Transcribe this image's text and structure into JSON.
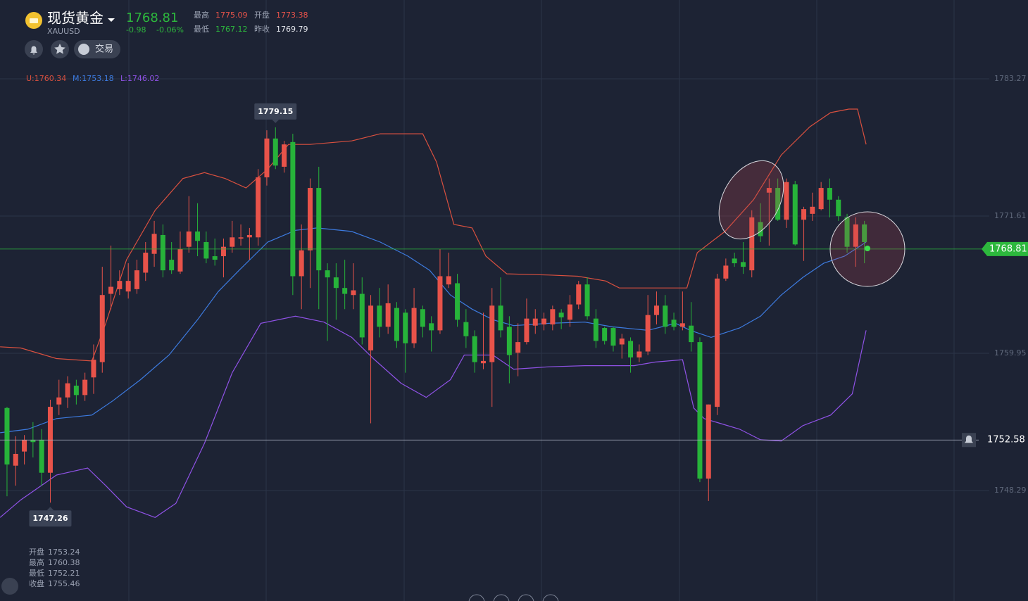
{
  "header": {
    "title": "现货黄金",
    "symbol": "XAUUSD",
    "price": "1768.81",
    "change": "-0.98",
    "change_pct": "-0.06%",
    "stats": [
      {
        "label": "最高",
        "value": "1775.09",
        "color": "#e8534a"
      },
      {
        "label": "开盘",
        "value": "1773.38",
        "color": "#e8534a"
      },
      {
        "label": "最低",
        "value": "1767.12",
        "color": "#2db83d"
      },
      {
        "label": "昨收",
        "value": "1769.79",
        "color": "#e6e8ee"
      }
    ],
    "trade_button": "交易"
  },
  "info_panel": {
    "labels": [
      "开盘",
      "最高",
      "最低",
      "收盘"
    ],
    "values": [
      "1753.24",
      "1760.38",
      "1752.21",
      "1755.46"
    ]
  },
  "chart_data": {
    "type": "candlestick",
    "up_color": "#e8534a",
    "down_color": "#27b33a",
    "xlim": [
      -0.81,
      117.89
    ],
    "ylim": [
      1738.9,
      1789.97
    ],
    "yticks": [
      1783.27,
      1771.61,
      1759.95,
      1748.29
    ],
    "grid": true,
    "current_price": 1768.81,
    "alert_price": 1752.58,
    "open": [
      1755.3,
      1750.4,
      1751.6,
      1752.6,
      1752.6,
      1749.8,
      1755.6,
      1756.2,
      1757.2,
      1756.4,
      1757.9,
      1759.2,
      1765.0,
      1765.4,
      1765.2,
      1765.4,
      1766.8,
      1768.4,
      1770.0,
      1767.9,
      1766.9,
      1769.0,
      1770.3,
      1769.4,
      1768.2,
      1768.2,
      1769.0,
      1769.7,
      1769.8,
      1769.8,
      1774.9,
      1778.2,
      1775.8,
      1777.9,
      1766.5,
      1768.7,
      1774.0,
      1767.0,
      1766.4,
      1765.5,
      1764.9,
      1765.0,
      1760.2,
      1764.0,
      1762.2,
      1763.8,
      1763.4,
      1760.8,
      1763.7,
      1762.5,
      1761.9,
      1765.8,
      1765.9,
      1762.6,
      1761.4,
      1759.1,
      1759.2,
      1764.0,
      1762.2,
      1760.0,
      1760.9,
      1762.3,
      1762.4,
      1762.4,
      1763.4,
      1762.8,
      1764.1,
      1765.8,
      1762.9,
      1762.1,
      1762.1,
      1760.7,
      1761.0,
      1759.6,
      1760.1,
      1763.2,
      1764.0,
      1762.8,
      1762.2,
      1762.3,
      1760.9,
      1749.3,
      1755.4,
      1766.3,
      1768.0,
      1767.7,
      1767.0,
      1771.1,
      1773.6,
      1774.0,
      1771.3,
      1774.3,
      1771.3,
      1771.8,
      1772.2,
      1774.0,
      1773.0,
      1771.5,
      1769.0,
      1770.9
    ],
    "high": [
      1755.4,
      1752.9,
      1753.0,
      1754.1,
      1753.5,
      1756.0,
      1757.7,
      1758.0,
      1757.7,
      1758.3,
      1760.7,
      1767.3,
      1769.1,
      1767.0,
      1767.6,
      1767.9,
      1769.4,
      1771.2,
      1770.9,
      1769.4,
      1770.3,
      1773.3,
      1772.7,
      1770.3,
      1769.7,
      1769.7,
      1771.2,
      1770.9,
      1770.6,
      1775.6,
      1778.9,
      1779.15,
      1778.0,
      1778.6,
      1770.9,
      1774.8,
      1775.8,
      1767.6,
      1767.6,
      1767.9,
      1767.6,
      1766.4,
      1764.9,
      1765.5,
      1765.8,
      1764.3,
      1763.7,
      1765.5,
      1764.0,
      1763.1,
      1768.8,
      1768.5,
      1766.7,
      1763.7,
      1761.9,
      1763.4,
      1765.5,
      1766.4,
      1763.1,
      1762.5,
      1764.6,
      1763.7,
      1763.4,
      1764.0,
      1763.7,
      1764.9,
      1766.1,
      1766.4,
      1763.7,
      1762.2,
      1762.2,
      1761.6,
      1761.3,
      1760.7,
      1764.9,
      1765.2,
      1764.9,
      1763.4,
      1765.2,
      1764.3,
      1761.3,
      1755.6,
      1766.7,
      1768.0,
      1768.5,
      1769.4,
      1772.1,
      1772.7,
      1774.8,
      1774.8,
      1774.8,
      1774.6,
      1772.4,
      1773.6,
      1774.5,
      1774.8,
      1773.3,
      1771.8,
      1771.5,
      1771.2
    ],
    "low": [
      1747.8,
      1748.7,
      1750.5,
      1751.1,
      1748.7,
      1747.26,
      1754.7,
      1755.3,
      1755.6,
      1755.9,
      1756.5,
      1758.3,
      1763.7,
      1764.9,
      1764.6,
      1765.0,
      1766.1,
      1767.3,
      1766.4,
      1766.7,
      1766.7,
      1768.5,
      1768.2,
      1767.6,
      1767.4,
      1766.4,
      1768.5,
      1769.1,
      1767.9,
      1769.1,
      1774.2,
      1775.6,
      1775.3,
      1764.9,
      1763.7,
      1765.5,
      1763.7,
      1761.0,
      1762.8,
      1763.7,
      1763.7,
      1760.7,
      1754.0,
      1761.3,
      1761.6,
      1760.4,
      1758.3,
      1760.4,
      1761.3,
      1760.1,
      1761.6,
      1765.5,
      1762.2,
      1760.4,
      1758.3,
      1758.6,
      1755.4,
      1761.3,
      1757.4,
      1758.0,
      1760.7,
      1761.6,
      1761.9,
      1761.9,
      1762.0,
      1762.2,
      1763.7,
      1762.8,
      1760.4,
      1760.7,
      1760.1,
      1759.5,
      1758.3,
      1759.2,
      1759.8,
      1762.4,
      1761.6,
      1761.9,
      1761.9,
      1760.1,
      1749.0,
      1747.4,
      1754.7,
      1766.1,
      1767.3,
      1766.7,
      1766.4,
      1769.4,
      1769.1,
      1771.2,
      1770.6,
      1769.1,
      1767.8,
      1771.2,
      1772.1,
      1771.5,
      1771.2,
      1768.5,
      1767.3,
      1767.6
    ],
    "close": [
      1750.5,
      1751.4,
      1752.6,
      1752.4,
      1749.8,
      1755.4,
      1756.2,
      1757.4,
      1756.4,
      1757.7,
      1759.4,
      1764.9,
      1765.6,
      1766.1,
      1766.1,
      1767.0,
      1768.5,
      1770.1,
      1767.0,
      1767.0,
      1768.8,
      1770.3,
      1769.5,
      1768.0,
      1767.9,
      1769.0,
      1769.8,
      1769.8,
      1770.0,
      1774.9,
      1778.2,
      1775.9,
      1777.7,
      1766.5,
      1768.7,
      1774.0,
      1767.0,
      1766.4,
      1765.5,
      1765.0,
      1765.3,
      1761.3,
      1764.0,
      1762.2,
      1764.2,
      1761.0,
      1760.8,
      1763.8,
      1762.2,
      1761.9,
      1766.5,
      1766.5,
      1762.8,
      1761.4,
      1759.2,
      1759.3,
      1764.0,
      1761.9,
      1759.8,
      1760.9,
      1762.9,
      1762.9,
      1762.9,
      1763.7,
      1763.0,
      1764.1,
      1765.8,
      1763.1,
      1761.0,
      1761.0,
      1760.6,
      1761.2,
      1759.6,
      1760.1,
      1763.2,
      1764.0,
      1762.2,
      1762.2,
      1762.5,
      1760.9,
      1749.3,
      1755.6,
      1766.3,
      1767.4,
      1767.6,
      1767.3,
      1771.5,
      1769.9,
      1774.0,
      1771.3,
      1774.5,
      1769.2,
      1772.2,
      1772.4,
      1774.0,
      1773.0,
      1771.6,
      1769.0,
      1770.9,
      1769.4
    ],
    "series": [
      {
        "name": "U:1760.34",
        "color": "#d9503f",
        "x": [
          -0.8,
          1.6,
          5.7,
          9.8,
          11.4,
          13.8,
          17.1,
          20.3,
          22.8,
          25.2,
          27.6,
          30.1,
          32.5,
          35.0,
          39.8,
          43.1,
          48.0,
          49.6,
          51.6,
          53.7,
          55.3,
          57.7,
          62.6,
          65.9,
          69.1,
          70.7,
          76.4,
          78.5,
          79.7,
          82.9,
          86.2,
          89.4,
          92.7,
          95.1,
          97.2,
          98.2,
          99.2
        ],
        "values": [
          1760.5,
          1760.4,
          1759.5,
          1759.3,
          1762.5,
          1767.9,
          1772.1,
          1774.8,
          1775.3,
          1774.8,
          1774.0,
          1775.6,
          1777.7,
          1777.7,
          1778.0,
          1778.6,
          1778.6,
          1776.2,
          1770.9,
          1770.6,
          1768.2,
          1766.7,
          1766.6,
          1766.5,
          1766.1,
          1765.5,
          1765.5,
          1765.5,
          1768.5,
          1770.3,
          1773.0,
          1776.8,
          1779.2,
          1780.4,
          1780.7,
          1780.7,
          1777.7
        ]
      },
      {
        "name": "M:1753.18",
        "color": "#3d7be0",
        "x": [
          -0.8,
          2.4,
          5.7,
          9.8,
          12.2,
          15.4,
          18.7,
          22.0,
          24.4,
          26.8,
          30.1,
          33.3,
          35.8,
          39.8,
          43.1,
          46.3,
          48.8,
          51.2,
          53.7,
          56.1,
          58.5,
          62.6,
          66.7,
          69.9,
          74.0,
          77.2,
          78.9,
          81.3,
          84.6,
          87.0,
          89.4,
          91.9,
          94.3,
          96.7,
          99.2
        ],
        "values": [
          1753.2,
          1753.5,
          1754.4,
          1754.7,
          1755.9,
          1757.7,
          1759.8,
          1762.8,
          1765.2,
          1767.0,
          1769.4,
          1770.4,
          1770.6,
          1770.3,
          1769.4,
          1768.2,
          1767.0,
          1764.9,
          1763.7,
          1762.8,
          1762.3,
          1762.5,
          1762.6,
          1762.2,
          1761.9,
          1762.5,
          1761.9,
          1761.3,
          1762.1,
          1763.1,
          1764.9,
          1766.4,
          1767.6,
          1768.2,
          1769.4
        ]
      },
      {
        "name": "L:1746.02",
        "color": "#8f52e6",
        "x": [
          -0.8,
          1.6,
          5.7,
          9.3,
          11.4,
          13.8,
          17.1,
          19.5,
          22.8,
          26.0,
          29.3,
          33.3,
          36.6,
          39.8,
          42.3,
          45.5,
          48.4,
          51.2,
          52.8,
          56.1,
          58.5,
          62.6,
          66.7,
          72.4,
          74.8,
          78.0,
          79.3,
          80.5,
          84.6,
          87.0,
          89.4,
          91.9,
          95.1,
          97.6,
          99.2
        ],
        "values": [
          1746.0,
          1747.5,
          1749.6,
          1750.2,
          1748.7,
          1746.9,
          1746.0,
          1747.2,
          1752.3,
          1758.3,
          1762.5,
          1763.1,
          1762.6,
          1761.3,
          1759.5,
          1757.4,
          1756.2,
          1757.7,
          1759.8,
          1759.8,
          1758.6,
          1758.8,
          1758.9,
          1758.9,
          1759.2,
          1759.4,
          1755.3,
          1754.4,
          1753.5,
          1752.6,
          1752.5,
          1753.8,
          1754.7,
          1756.5,
          1761.9
        ]
      }
    ]
  }
}
